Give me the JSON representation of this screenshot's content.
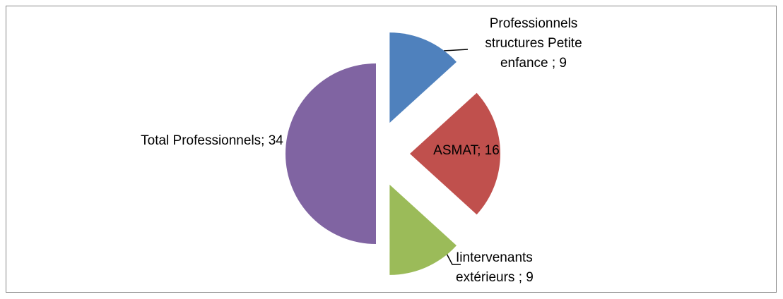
{
  "chart_data": {
    "type": "pie",
    "categories": [
      "Professionnels structures Petite enfance ; 9",
      "ASMAT; 16",
      "Iintervenants extérieurs ; 9",
      "Total Professionnels; 34"
    ],
    "values": [
      9,
      16,
      9,
      34
    ],
    "colors": [
      "#4f81bd",
      "#c0504d",
      "#9bbb59",
      "#8064a2"
    ]
  }
}
